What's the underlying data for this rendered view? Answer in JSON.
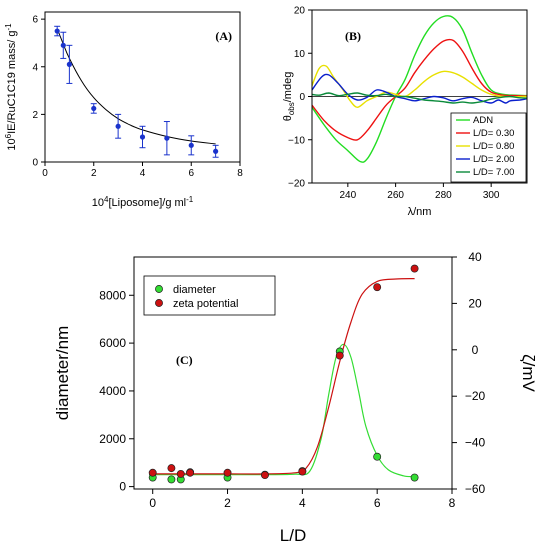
{
  "chart_data": [
    {
      "panel": "A",
      "type": "scatter",
      "tag": "(A)",
      "xlabel": "10^4[Liposome]/g ml^-1",
      "ylabel": "10^6IE/RuC1C19 mass/ g^-1",
      "xlim": [
        0,
        8
      ],
      "ylim": [
        0,
        6.3
      ],
      "xticks": [
        0,
        2,
        4,
        6,
        8
      ],
      "yticks": [
        0,
        2,
        4,
        6
      ],
      "grid": false,
      "color": "#1a33cc",
      "points": [
        {
          "x": 0.5,
          "y": 5.5,
          "err": 0.2
        },
        {
          "x": 0.75,
          "y": 4.9,
          "err": 0.55
        },
        {
          "x": 1.0,
          "y": 4.1,
          "err": 0.8
        },
        {
          "x": 2.0,
          "y": 2.25,
          "err": 0.2
        },
        {
          "x": 3.0,
          "y": 1.5,
          "err": 0.5
        },
        {
          "x": 4.0,
          "y": 1.05,
          "err": 0.45
        },
        {
          "x": 5.0,
          "y": 1.0,
          "err": 0.7
        },
        {
          "x": 6.0,
          "y": 0.7,
          "err": 0.4
        },
        {
          "x": 7.0,
          "y": 0.45,
          "err": 0.25
        }
      ],
      "fit_curve": [
        [
          0.5,
          5.6
        ],
        [
          0.75,
          4.95
        ],
        [
          1.0,
          4.35
        ],
        [
          1.5,
          3.4
        ],
        [
          2.0,
          2.7
        ],
        [
          2.5,
          2.2
        ],
        [
          3.0,
          1.82
        ],
        [
          3.5,
          1.55
        ],
        [
          4.0,
          1.35
        ],
        [
          5.0,
          1.07
        ],
        [
          6.0,
          0.88
        ],
        [
          7.0,
          0.76
        ]
      ]
    },
    {
      "panel": "B",
      "type": "line",
      "tag": "(B)",
      "xlabel": "λ/nm",
      "ylabel_main": "θ",
      "ylabel_sub": "obs",
      "ylabel_rest": "/mdeg",
      "xlim": [
        225,
        315
      ],
      "ylim": [
        -20,
        20
      ],
      "xticks": [
        240,
        260,
        280,
        300
      ],
      "yticks": [
        -20,
        -10,
        0,
        10,
        20
      ],
      "grid": false,
      "legend_position": "bottom-right",
      "series": [
        {
          "name": "ADN",
          "color": "#22dd22",
          "points": [
            [
              225,
              -2.5
            ],
            [
              230,
              -6.5
            ],
            [
              235,
              -10
            ],
            [
              240,
              -12.5
            ],
            [
              245,
              -15
            ],
            [
              248,
              -14.5
            ],
            [
              252,
              -10.5
            ],
            [
              256,
              -5
            ],
            [
              260,
              0
            ],
            [
              264,
              4
            ],
            [
              268,
              9.5
            ],
            [
              272,
              14
            ],
            [
              276,
              17
            ],
            [
              280,
              18.5
            ],
            [
              284,
              18.3
            ],
            [
              288,
              15.5
            ],
            [
              292,
              10
            ],
            [
              296,
              5
            ],
            [
              300,
              1.5
            ],
            [
              305,
              0.5
            ],
            [
              310,
              0.3
            ],
            [
              315,
              0.2
            ]
          ]
        },
        {
          "name": "L/D=  0.30",
          "color": "#ee1111",
          "points": [
            [
              225,
              -2
            ],
            [
              230,
              -5.5
            ],
            [
              235,
              -8
            ],
            [
              240,
              -9.5
            ],
            [
              244,
              -10
            ],
            [
              248,
              -8
            ],
            [
              252,
              -5
            ],
            [
              256,
              -2
            ],
            [
              260,
              0
            ],
            [
              264,
              2
            ],
            [
              268,
              5.5
            ],
            [
              272,
              8.5
            ],
            [
              276,
              11
            ],
            [
              280,
              12.8
            ],
            [
              284,
              13
            ],
            [
              288,
              10.5
            ],
            [
              292,
              6.5
            ],
            [
              296,
              3
            ],
            [
              300,
              1
            ],
            [
              305,
              0.3
            ],
            [
              310,
              0.2
            ],
            [
              315,
              0.1
            ]
          ]
        },
        {
          "name": "L/D=  0.80",
          "color": "#e8e000",
          "points": [
            [
              225,
              2.5
            ],
            [
              228,
              6.5
            ],
            [
              231,
              7
            ],
            [
              234,
              4.5
            ],
            [
              238,
              1.5
            ],
            [
              241,
              -1
            ],
            [
              244,
              -2.5
            ],
            [
              248,
              -1
            ],
            [
              252,
              0
            ],
            [
              256,
              1
            ],
            [
              260,
              0.5
            ],
            [
              264,
              0
            ],
            [
              268,
              1.5
            ],
            [
              272,
              3.5
            ],
            [
              276,
              5
            ],
            [
              280,
              5.8
            ],
            [
              284,
              5.5
            ],
            [
              288,
              4.5
            ],
            [
              292,
              3
            ],
            [
              296,
              1.5
            ],
            [
              300,
              0.5
            ],
            [
              305,
              0
            ],
            [
              315,
              0
            ]
          ]
        },
        {
          "name": "L/D=  2.00",
          "color": "#0a1fcc",
          "points": [
            [
              225,
              1.5
            ],
            [
              229,
              4.5
            ],
            [
              232,
              5
            ],
            [
              236,
              3
            ],
            [
              240,
              0.5
            ],
            [
              244,
              -0.8
            ],
            [
              248,
              -0.2
            ],
            [
              252,
              1.5
            ],
            [
              256,
              1
            ],
            [
              260,
              0
            ],
            [
              264,
              -0.5
            ],
            [
              268,
              -1
            ],
            [
              272,
              -0.5
            ],
            [
              276,
              0
            ],
            [
              280,
              -0.3
            ],
            [
              284,
              -1
            ],
            [
              288,
              -0.5
            ],
            [
              292,
              -0.2
            ],
            [
              296,
              -1
            ],
            [
              300,
              -1.5
            ],
            [
              303,
              -0.8
            ],
            [
              306,
              -1.5
            ],
            [
              308,
              -1
            ],
            [
              312,
              -0.8
            ],
            [
              315,
              -0.5
            ]
          ]
        },
        {
          "name": "L/D=  7.00",
          "color": "#0a8a3a",
          "points": [
            [
              225,
              0.5
            ],
            [
              228,
              0.3
            ],
            [
              232,
              0.8
            ],
            [
              236,
              0.2
            ],
            [
              240,
              0.5
            ],
            [
              244,
              0.8
            ],
            [
              248,
              0.3
            ],
            [
              252,
              0.2
            ],
            [
              256,
              0.5
            ],
            [
              260,
              0
            ],
            [
              264,
              0
            ],
            [
              268,
              -0.4
            ],
            [
              272,
              -0.8
            ],
            [
              276,
              -1
            ],
            [
              280,
              -1.2
            ],
            [
              284,
              -1.5
            ],
            [
              288,
              -1.3
            ],
            [
              292,
              -1.5
            ],
            [
              296,
              -1.2
            ],
            [
              300,
              -0.6
            ],
            [
              304,
              -0.2
            ],
            [
              308,
              0
            ],
            [
              312,
              -0.3
            ],
            [
              315,
              -0.4
            ]
          ]
        }
      ]
    },
    {
      "panel": "C",
      "type": "scatter",
      "tag": "(C)",
      "xlabel": "L/D",
      "ylabel_left": "diameter/nm",
      "ylabel_right": "ζ/mV",
      "xlim": [
        -0.5,
        8
      ],
      "ylim_left": [
        -100,
        9600
      ],
      "ylim_right": [
        -60,
        40
      ],
      "xticks": [
        0,
        2,
        4,
        6,
        8
      ],
      "yticks_left": [
        0,
        2000,
        4000,
        6000,
        8000
      ],
      "yticks_right": [
        -60,
        -40,
        -20,
        0,
        20,
        40
      ],
      "grid": false,
      "legend_position": "top-left",
      "series": [
        {
          "name": "diameter",
          "color": "#33dd33",
          "axis": "left",
          "points": [
            [
              0,
              380
            ],
            [
              0.5,
              300
            ],
            [
              0.75,
              300
            ],
            [
              1,
              600
            ],
            [
              2,
              380
            ],
            [
              3,
              500
            ],
            [
              4,
              650
            ],
            [
              5,
              5650
            ],
            [
              6,
              1250
            ],
            [
              7,
              380
            ]
          ],
          "fit_curve": [
            [
              -0.1,
              500
            ],
            [
              1,
              500
            ],
            [
              2,
              500
            ],
            [
              3,
              500
            ],
            [
              3.8,
              520
            ],
            [
              4.2,
              650
            ],
            [
              4.5,
              2000
            ],
            [
              4.7,
              3800
            ],
            [
              4.9,
              5400
            ],
            [
              5.1,
              5950
            ],
            [
              5.3,
              5400
            ],
            [
              5.5,
              4000
            ],
            [
              5.7,
              2500
            ],
            [
              6,
              1300
            ],
            [
              6.3,
              700
            ],
            [
              6.7,
              450
            ],
            [
              7,
              420
            ]
          ]
        },
        {
          "name": "zeta potential",
          "color": "#cc1111",
          "axis": "right",
          "points": [
            [
              0,
              -53
            ],
            [
              0.5,
              -51
            ],
            [
              0.75,
              -53.5
            ],
            [
              1,
              -53
            ],
            [
              2,
              -53
            ],
            [
              3,
              -54
            ],
            [
              4,
              -52.5
            ],
            [
              5,
              -2.5
            ],
            [
              6,
              27
            ],
            [
              7,
              35
            ]
          ],
          "fit_curve": [
            [
              -0.1,
              -53.5
            ],
            [
              1,
              -53.5
            ],
            [
              2,
              -53.5
            ],
            [
              3,
              -53.5
            ],
            [
              3.8,
              -53
            ],
            [
              4.1,
              -51
            ],
            [
              4.4,
              -42
            ],
            [
              4.7,
              -25
            ],
            [
              5.0,
              -5
            ],
            [
              5.3,
              12
            ],
            [
              5.6,
              24
            ],
            [
              6.0,
              29.5
            ],
            [
              6.5,
              30.5
            ],
            [
              7,
              30.7
            ]
          ]
        }
      ]
    }
  ]
}
